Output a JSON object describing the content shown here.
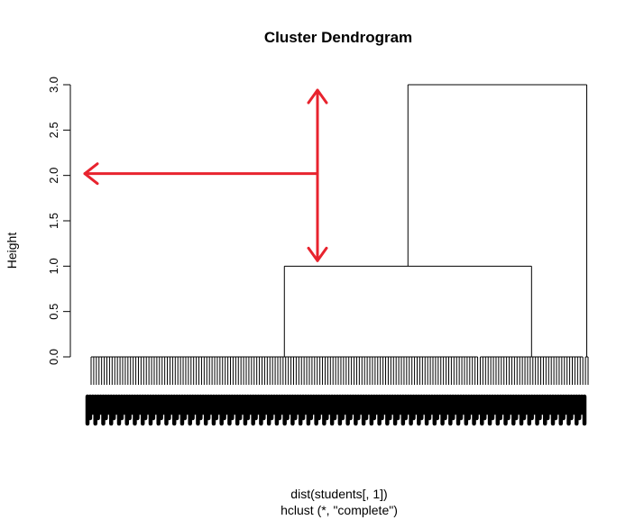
{
  "chart_data": {
    "type": "dendrogram",
    "title": "Cluster Dendrogram",
    "ylabel": "Height",
    "xlabel": "dist(students[, 1])",
    "sub": "hclust (*, \"complete\")",
    "ylim": [
      0,
      3
    ],
    "y_ticks": [
      "0.0",
      "0.5",
      "1.0",
      "1.5",
      "2.0",
      "2.5",
      "3.0"
    ],
    "n_leaves": 190,
    "clusters": [
      {
        "leaf_range": [
          0,
          147
        ],
        "merge_height": 0.0
      },
      {
        "leaf_range": [
          148,
          187
        ],
        "merge_height": 0.0
      },
      {
        "leaf_range": [
          188,
          189
        ],
        "merge_height": 0.0
      }
    ],
    "merges": [
      {
        "children": [
          "cluster-0",
          "cluster-1"
        ],
        "height": 1.0
      },
      {
        "children": [
          "merge-0",
          "cluster-2"
        ],
        "height": 3.0
      }
    ],
    "annotations": [
      {
        "type": "arrow",
        "color": "#e8232e",
        "direction": "left",
        "y_value": 2.02
      },
      {
        "type": "arrow",
        "color": "#e8232e",
        "direction": "vertical-both",
        "y_range": [
          1.06,
          2.94
        ]
      }
    ]
  }
}
